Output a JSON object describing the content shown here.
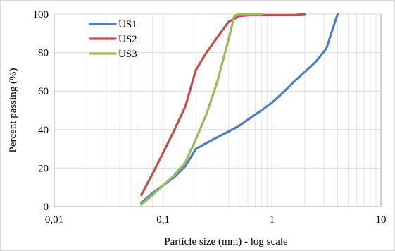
{
  "chart_data": {
    "type": "line",
    "title": "",
    "xlabel": "Particle size (mm) - log scale",
    "ylabel": "Percent passing (%)",
    "xscale": "log",
    "xlim": [
      0.01,
      10
    ],
    "ylim": [
      0,
      100
    ],
    "x_ticks": [
      0.01,
      0.1,
      1,
      10
    ],
    "x_tick_labels": [
      "0,01",
      "0,1",
      "1",
      "10"
    ],
    "y_ticks": [
      0,
      20,
      40,
      60,
      80,
      100
    ],
    "y_tick_labels": [
      "0",
      "20",
      "40",
      "60",
      "80",
      "100"
    ],
    "grid": {
      "major": true,
      "minor_x": true
    },
    "legend": {
      "position": "top-left-inside"
    },
    "series": [
      {
        "name": "US1",
        "color": "#4f7dbd",
        "points": [
          [
            0.063,
            2
          ],
          [
            0.08,
            7
          ],
          [
            0.1,
            11
          ],
          [
            0.125,
            15
          ],
          [
            0.16,
            21
          ],
          [
            0.2,
            30
          ],
          [
            0.25,
            33
          ],
          [
            0.315,
            36
          ],
          [
            0.4,
            39
          ],
          [
            0.5,
            42
          ],
          [
            0.63,
            46
          ],
          [
            0.8,
            50
          ],
          [
            1.0,
            54
          ],
          [
            1.25,
            59
          ],
          [
            1.6,
            65
          ],
          [
            2.0,
            70
          ],
          [
            2.5,
            75
          ],
          [
            3.15,
            82
          ],
          [
            3.5,
            90
          ],
          [
            4.0,
            100
          ]
        ]
      },
      {
        "name": "US2",
        "color": "#c0504d",
        "points": [
          [
            0.063,
            6
          ],
          [
            0.08,
            17
          ],
          [
            0.1,
            28
          ],
          [
            0.125,
            39
          ],
          [
            0.16,
            52
          ],
          [
            0.2,
            71
          ],
          [
            0.25,
            80
          ],
          [
            0.315,
            88
          ],
          [
            0.4,
            96
          ],
          [
            0.5,
            99
          ],
          [
            0.63,
            99.5
          ],
          [
            0.8,
            99.5
          ],
          [
            1.0,
            99.5
          ],
          [
            1.25,
            99.5
          ],
          [
            1.6,
            99.5
          ],
          [
            2.0,
            100
          ]
        ]
      },
      {
        "name": "US3",
        "color": "#9bbb59",
        "points": [
          [
            0.063,
            1
          ],
          [
            0.08,
            6
          ],
          [
            0.1,
            11
          ],
          [
            0.125,
            16
          ],
          [
            0.16,
            23
          ],
          [
            0.2,
            35
          ],
          [
            0.25,
            48
          ],
          [
            0.315,
            65
          ],
          [
            0.4,
            87
          ],
          [
            0.45,
            99
          ],
          [
            0.5,
            100
          ],
          [
            0.63,
            100
          ],
          [
            0.8,
            100
          ]
        ]
      }
    ]
  }
}
